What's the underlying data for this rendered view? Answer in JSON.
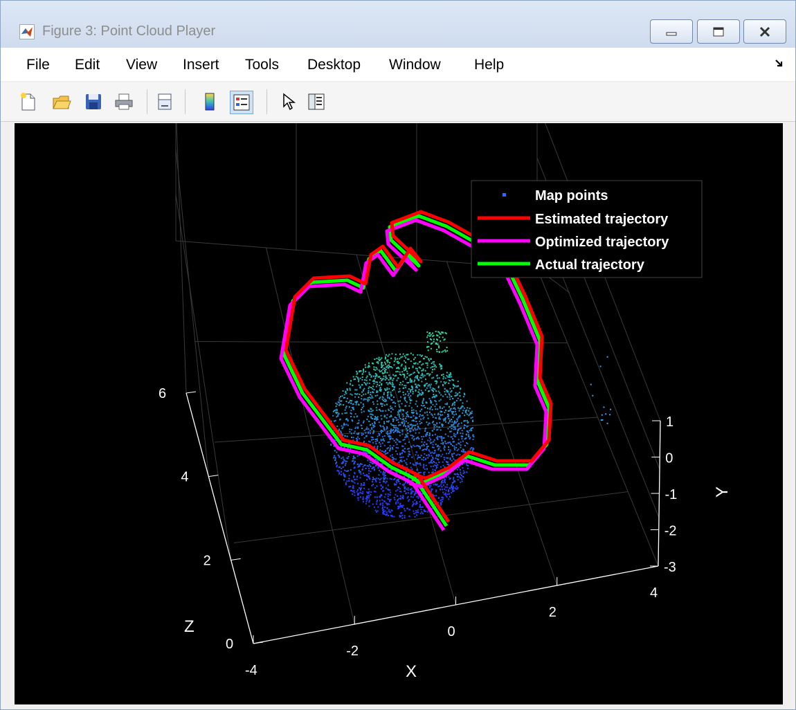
{
  "window": {
    "title": "Figure 3: Point Cloud Player",
    "app_icon": "matlab-logo-icon",
    "controls": [
      "minimize-icon",
      "maximize-icon",
      "close-icon"
    ]
  },
  "menu": {
    "items": [
      "File",
      "Edit",
      "View",
      "Insert",
      "Tools",
      "Desktop",
      "Window",
      "Help"
    ],
    "dock_icon": "dock-arrow-icon"
  },
  "toolbar": {
    "icons": [
      "new-figure-icon",
      "open-file-icon",
      "save-icon",
      "print-icon",
      "link-plot-icon",
      "colorbar-icon",
      "legend-icon",
      "edit-plot-cursor-icon",
      "property-inspector-icon"
    ],
    "active": "legend-icon"
  },
  "chart_data": {
    "type": "scatter",
    "view": "3d",
    "background": "#000000",
    "xlabel": "X",
    "ylabel": "Y",
    "zlabel": "Z",
    "xlim": [
      -4,
      4
    ],
    "ylim": [
      -3,
      1
    ],
    "zlim": [
      0,
      6
    ],
    "xticks": [
      "-4",
      "-2",
      "0",
      "2",
      "4"
    ],
    "yticks": [
      "-3",
      "-2",
      "-1",
      "0",
      "1"
    ],
    "zticks": [
      "0",
      "2",
      "4",
      "6"
    ],
    "grid": true,
    "legend": {
      "placement": "top-right",
      "entries": [
        {
          "label": "Map points",
          "color": "#3366ff",
          "marker": "point"
        },
        {
          "label": "Estimated trajectory",
          "color": "#ff0000",
          "marker": "line"
        },
        {
          "label": "Optimized trajectory",
          "color": "#ff00ff",
          "marker": "line"
        },
        {
          "label": "Actual trajectory",
          "color": "#00ff00",
          "marker": "line"
        }
      ]
    },
    "colors": {
      "estimated": "#ff0000",
      "optimized": "#ff00ff",
      "actual": "#00ff00",
      "points_low": "#2a3cff",
      "points_high": "#30d8a8",
      "axes": "#ffffff",
      "grid": "#3a3a3a"
    }
  }
}
